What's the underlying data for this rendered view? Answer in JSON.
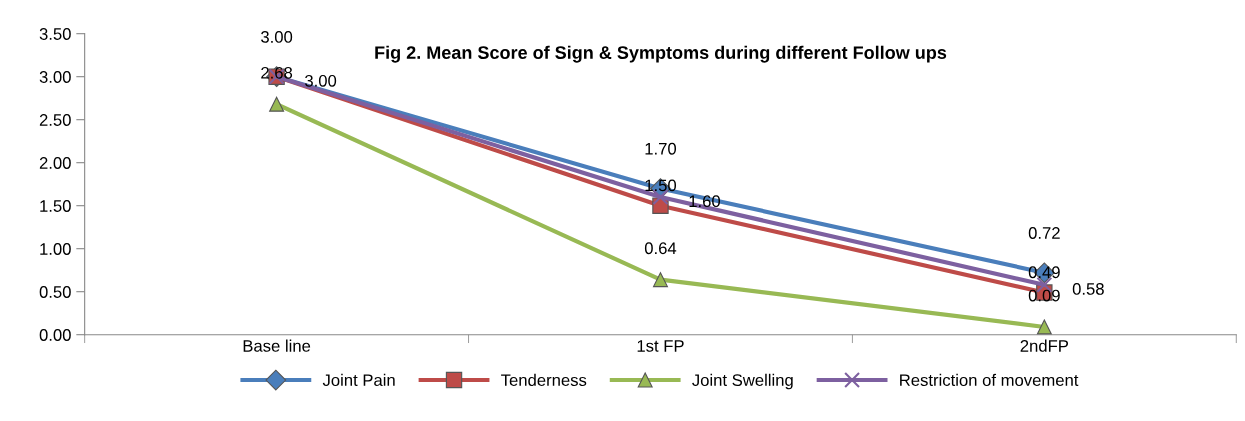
{
  "chart_data": {
    "type": "line",
    "title": "Fig 2. Mean Score of Sign & Symptoms during different Follow ups",
    "categories": [
      "Base line",
      "1st FP",
      "2ndFP"
    ],
    "series": [
      {
        "name": "Joint Pain",
        "color": "#4a7ebb",
        "values": [
          3.0,
          1.7,
          0.72
        ],
        "value_labels": [
          "3.00",
          "1.70",
          "0.72"
        ],
        "marker": "diamond"
      },
      {
        "name": "Tenderness",
        "color": "#be4b48",
        "values": [
          3.0,
          1.5,
          0.49
        ],
        "value_labels": [
          null,
          "1.50",
          "0.49"
        ],
        "marker": "square"
      },
      {
        "name": "Joint Swelling",
        "color": "#98b954",
        "values": [
          2.68,
          0.64,
          0.09
        ],
        "value_labels": [
          "2.68",
          "0.64",
          "0.09"
        ],
        "marker": "triangle"
      },
      {
        "name": "Restriction of movement",
        "color": "#7d60a0",
        "values": [
          3.0,
          1.6,
          0.58
        ],
        "value_labels": [
          "3.00",
          "1.60",
          "0.58"
        ],
        "marker": "cross"
      }
    ],
    "ylim": [
      0,
      3.5
    ],
    "yticks": [
      {
        "value": 0,
        "label": "0.00"
      },
      {
        "value": 0.5,
        "label": "0.50"
      },
      {
        "value": 1,
        "label": "1.00"
      },
      {
        "value": 1.5,
        "label": "1.50"
      },
      {
        "value": 2,
        "label": "2.00"
      },
      {
        "value": 2.5,
        "label": "2.50"
      },
      {
        "value": 3,
        "label": "3.00"
      },
      {
        "value": 3.5,
        "label": "3.50"
      }
    ],
    "grid": false,
    "legend": "bottom",
    "line_style": "solid"
  }
}
